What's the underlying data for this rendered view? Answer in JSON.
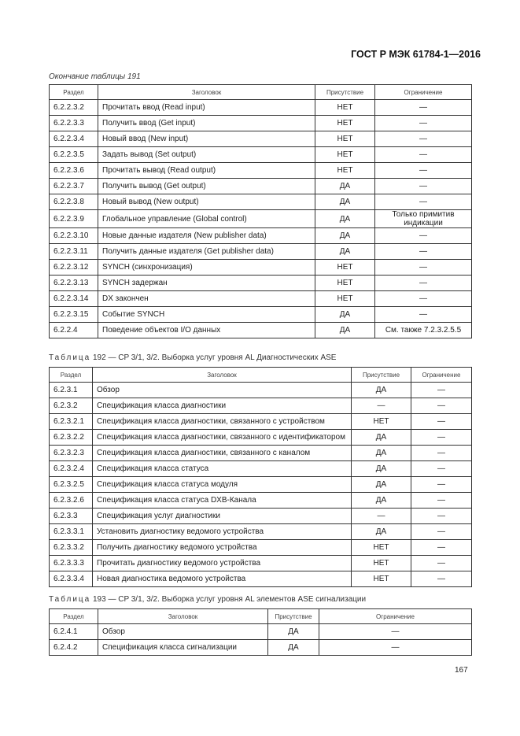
{
  "header": {
    "doc_id": "ГОСТ Р МЭК 61784-1—2016"
  },
  "columns": [
    "Раздел",
    "Заголовок",
    "Присутствие",
    "Ограничение"
  ],
  "table191": {
    "caption": "Окончание таблицы 191",
    "rows": [
      [
        "6.2.2.3.2",
        "Прочитать ввод (Read input)",
        "НЕТ",
        "—"
      ],
      [
        "6.2.2.3.3",
        "Получить ввод (Get input)",
        "НЕТ",
        "—"
      ],
      [
        "6.2.2.3.4",
        "Новый ввод (New input)",
        "НЕТ",
        "—"
      ],
      [
        "6.2.2.3.5",
        "Задать вывод (Set output)",
        "НЕТ",
        "—"
      ],
      [
        "6.2.2.3.6",
        "Прочитать вывод (Read output)",
        "НЕТ",
        "—"
      ],
      [
        "6.2.2.3.7",
        "Получить вывод (Get output)",
        "ДА",
        "—"
      ],
      [
        "6.2.2.3.8",
        "Новый вывод (New output)",
        "ДА",
        "—"
      ],
      [
        "6.2.2.3.9",
        "Глобальное управление (Global control)",
        "ДА",
        "Только примитив индикации"
      ],
      [
        "6.2.2.3.10",
        "Новые данные издателя (New publisher data)",
        "ДА",
        "—"
      ],
      [
        "6.2.2.3.11",
        "Получить данные издателя (Get publisher data)",
        "ДА",
        "—"
      ],
      [
        "6.2.2.3.12",
        "SYNCH (синхронизация)",
        "НЕТ",
        "—"
      ],
      [
        "6.2.2.3.13",
        "SYNCH задержан",
        "НЕТ",
        "—"
      ],
      [
        "6.2.2.3.14",
        "DX закончен",
        "НЕТ",
        "—"
      ],
      [
        "6.2.2.3.15",
        "Событие SYNCH",
        "ДА",
        "—"
      ],
      [
        "6.2.2.4",
        "Поведение объектов I/O данных",
        "ДА",
        "См. также 7.2.3.2.5.5"
      ]
    ]
  },
  "table192": {
    "caption_label": "Таблица",
    "caption_text": "192 — CP 3/1, 3/2. Выборка услуг уровня AL Диагностических ASE",
    "rows": [
      [
        "6.2.3.1",
        "Обзор",
        "ДА",
        "—"
      ],
      [
        "6.2.3.2",
        "Спецификация класса диагностики",
        "—",
        "—"
      ],
      [
        "6.2.3.2.1",
        "Спецификация класса диагностики, связанного с устройством",
        "НЕТ",
        "—"
      ],
      [
        "6.2.3.2.2",
        "Спецификация класса диагностики, связанного с идентификатором",
        "ДА",
        "—"
      ],
      [
        "6.2.3.2.3",
        "Спецификация класса диагностики, связанного с каналом",
        "ДА",
        "—"
      ],
      [
        "6.2.3.2.4",
        "Спецификация класса статуса",
        "ДА",
        "—"
      ],
      [
        "6.2.3.2.5",
        "Спецификация класса статуса модуля",
        "ДА",
        "—"
      ],
      [
        "6.2.3.2.6",
        "Спецификация класса статуса DXB-Канала",
        "ДА",
        "—"
      ],
      [
        "6.2.3.3",
        "Спецификация услуг диагностики",
        "—",
        "—"
      ],
      [
        "6.2.3.3.1",
        "Установить диагностику ведомого устройства",
        "ДА",
        "—"
      ],
      [
        "6.2.3.3.2",
        "Получить диагностику ведомого устройства",
        "НЕТ",
        "—"
      ],
      [
        "6.2.3.3.3",
        "Прочитать диагностику ведомого устройства",
        "НЕТ",
        "—"
      ],
      [
        "6.2.3.3.4",
        "Новая диагностика ведомого устройства",
        "НЕТ",
        "—"
      ]
    ]
  },
  "table193": {
    "caption_label": "Таблица",
    "caption_text": "193 — CP 3/1, 3/2. Выборка услуг уровня AL элементов ASE сигнализации",
    "rows": [
      [
        "6.2.4.1",
        "Обзор",
        "ДА",
        "—"
      ],
      [
        "6.2.4.2",
        "Спецификация класса сигнализации",
        "ДА",
        "—"
      ]
    ]
  },
  "page_number": "167"
}
